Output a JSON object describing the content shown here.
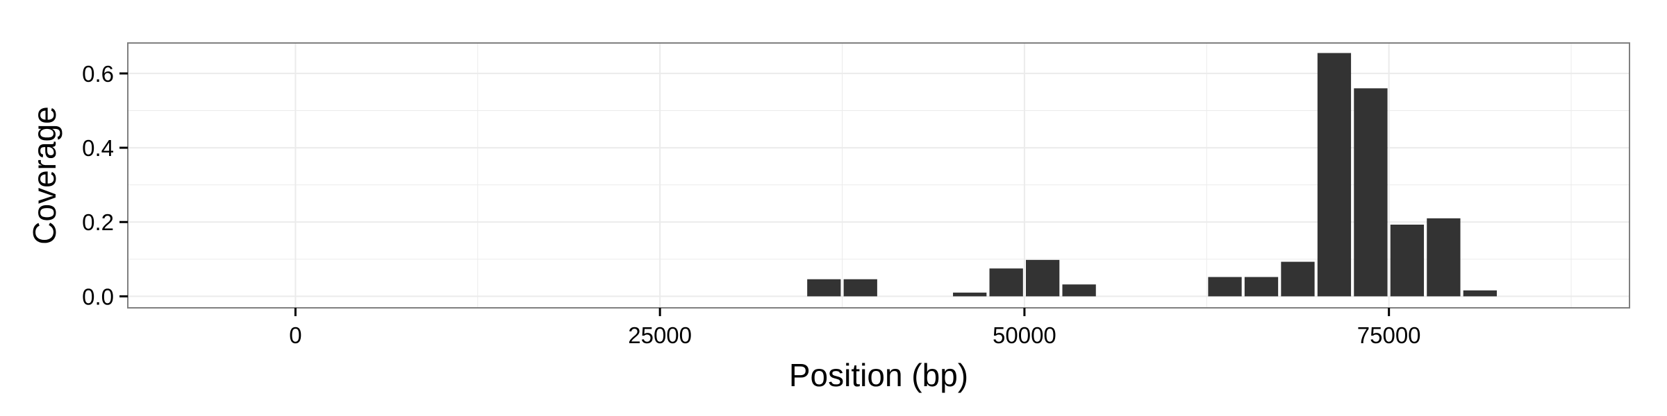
{
  "chart_data": {
    "type": "bar",
    "title": "",
    "xlabel": "Position (bp)",
    "ylabel": "Coverage",
    "xlim": [
      -11500,
      91500
    ],
    "ylim": [
      -0.031,
      0.682
    ],
    "x_ticks": [
      0,
      25000,
      50000,
      75000
    ],
    "x_tick_labels": [
      "0",
      "25000",
      "50000",
      "75000"
    ],
    "y_ticks": [
      0.0,
      0.2,
      0.4,
      0.6
    ],
    "y_tick_labels": [
      "0.0",
      "0.2",
      "0.4",
      "0.6"
    ],
    "bar_width": 2300,
    "grid": true,
    "legend": "none",
    "bar_color": "#333333",
    "panel_background": "#ffffff",
    "panel_border_color": "#7f7f7f",
    "grid_color": "#ebebeb",
    "x": [
      36250,
      38750,
      46250,
      48750,
      51250,
      53750,
      63750,
      66250,
      68750,
      71250,
      73750,
      76250,
      78750,
      81250
    ],
    "values": [
      0.046,
      0.046,
      0.01,
      0.075,
      0.098,
      0.032,
      0.052,
      0.052,
      0.093,
      0.655,
      0.56,
      0.193,
      0.21,
      0.016
    ]
  }
}
